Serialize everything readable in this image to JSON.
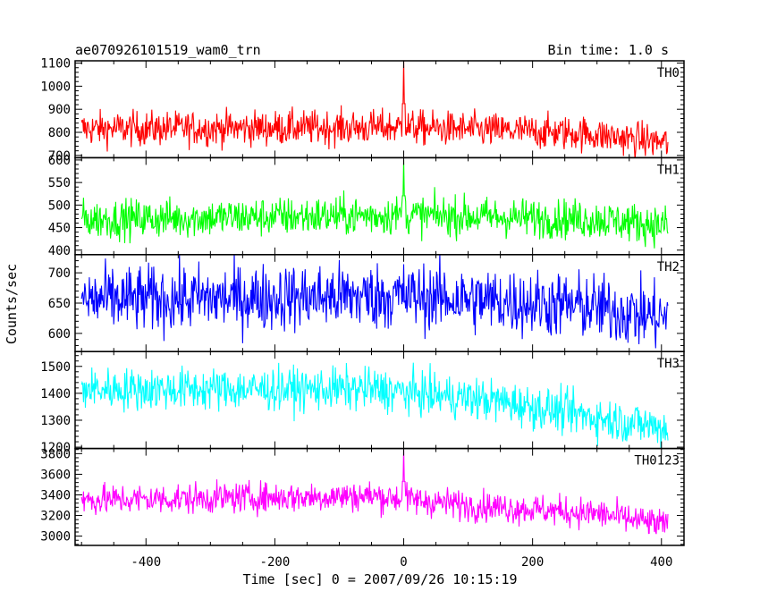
{
  "header": {
    "title": "ae070926101519_wam0_trn",
    "bin_time": "Bin time: 1.0 s"
  },
  "chart_data": {
    "type": "line",
    "xlabel": "Time [sec] 0 = 2007/09/26 10:15:19",
    "ylabel": "Counts/sec",
    "xlim": [
      -510,
      435
    ],
    "x_ticks": [
      -400,
      -200,
      0,
      200,
      400
    ],
    "x_range": [
      -500,
      410
    ],
    "bin_time_s": 1.0,
    "grid": false,
    "panels": [
      {
        "name": "TH0",
        "color": "#ff0000",
        "ylim": [
          690,
          1110
        ],
        "y_ticks": [
          700,
          800,
          900,
          1000,
          1100
        ],
        "profile": [
          [
            -500,
            815
          ],
          [
            0,
            822
          ],
          [
            280,
            795
          ],
          [
            410,
            755
          ]
        ],
        "noise": 38,
        "spike": {
          "x": 0,
          "y": 1115
        }
      },
      {
        "name": "TH1",
        "color": "#00ff00",
        "ylim": [
          390,
          605
        ],
        "y_ticks": [
          400,
          450,
          500,
          550,
          600
        ],
        "profile": [
          [
            -500,
            468
          ],
          [
            0,
            478
          ],
          [
            300,
            468
          ],
          [
            410,
            455
          ]
        ],
        "noise": 22,
        "spike": {
          "x": 0,
          "y": 600
        }
      },
      {
        "name": "TH2",
        "color": "#0000ff",
        "ylim": [
          570,
          730
        ],
        "y_ticks": [
          600,
          650,
          700
        ],
        "profile": [
          [
            -500,
            655
          ],
          [
            0,
            662
          ],
          [
            280,
            645
          ],
          [
            410,
            625
          ]
        ],
        "noise": 28,
        "spike": null
      },
      {
        "name": "TH3",
        "color": "#00ffff",
        "ylim": [
          1195,
          1555
        ],
        "y_ticks": [
          1200,
          1300,
          1400,
          1500
        ],
        "profile": [
          [
            -500,
            1415
          ],
          [
            -50,
            1415
          ],
          [
            150,
            1370
          ],
          [
            300,
            1310
          ],
          [
            410,
            1270
          ]
        ],
        "noise": 40,
        "spike": null
      },
      {
        "name": "TH0123",
        "color": "#ff00ff",
        "ylim": [
          2910,
          3850
        ],
        "y_ticks": [
          3000,
          3200,
          3400,
          3600,
          3800
        ],
        "profile": [
          [
            -500,
            3350
          ],
          [
            -50,
            3390
          ],
          [
            100,
            3300
          ],
          [
            300,
            3220
          ],
          [
            410,
            3100
          ]
        ],
        "noise": 75,
        "spike": {
          "x": 0,
          "y": 3845
        }
      }
    ]
  }
}
